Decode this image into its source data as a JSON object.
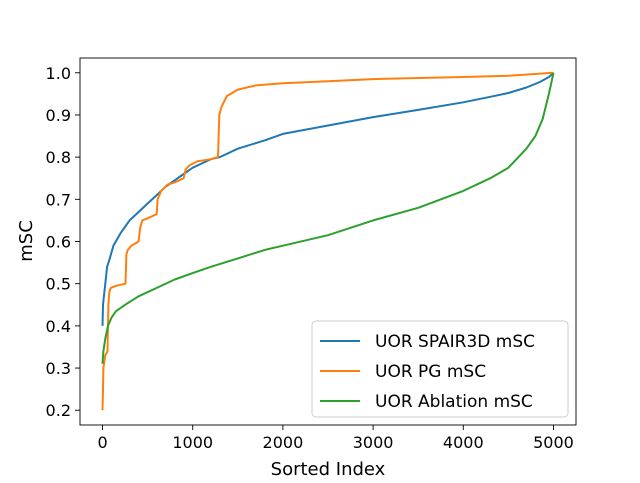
{
  "chart_data": {
    "type": "line",
    "title": "",
    "xlabel": "Sorted Index",
    "ylabel": "mSC",
    "xlim": [
      -250,
      5250
    ],
    "ylim": [
      0.165,
      1.035
    ],
    "xticks": [
      0,
      1000,
      2000,
      3000,
      4000,
      5000
    ],
    "yticks": [
      0.2,
      0.3,
      0.4,
      0.5,
      0.6,
      0.7,
      0.8,
      0.9,
      1.0
    ],
    "xtick_labels": [
      "0",
      "1000",
      "2000",
      "3000",
      "4000",
      "5000"
    ],
    "ytick_labels": [
      "0.2",
      "0.3",
      "0.4",
      "0.5",
      "0.6",
      "0.7",
      "0.8",
      "0.9",
      "1.0"
    ],
    "grid": false,
    "legend": {
      "position": "bottom-right"
    },
    "series": [
      {
        "name": "UOR SPAIR3D mSC",
        "color": "#1f77b4",
        "points": [
          [
            0,
            0.4
          ],
          [
            5,
            0.45
          ],
          [
            15,
            0.47
          ],
          [
            30,
            0.5
          ],
          [
            50,
            0.54
          ],
          [
            80,
            0.56
          ],
          [
            120,
            0.59
          ],
          [
            200,
            0.62
          ],
          [
            300,
            0.65
          ],
          [
            400,
            0.67
          ],
          [
            500,
            0.69
          ],
          [
            600,
            0.71
          ],
          [
            700,
            0.73
          ],
          [
            800,
            0.745
          ],
          [
            900,
            0.76
          ],
          [
            1000,
            0.775
          ],
          [
            1100,
            0.785
          ],
          [
            1200,
            0.795
          ],
          [
            1300,
            0.8
          ],
          [
            1500,
            0.82
          ],
          [
            1800,
            0.84
          ],
          [
            2000,
            0.855
          ],
          [
            2500,
            0.875
          ],
          [
            3000,
            0.895
          ],
          [
            3500,
            0.912
          ],
          [
            4000,
            0.93
          ],
          [
            4300,
            0.943
          ],
          [
            4500,
            0.952
          ],
          [
            4700,
            0.965
          ],
          [
            4850,
            0.978
          ],
          [
            4950,
            0.99
          ],
          [
            5000,
            1.0
          ]
        ]
      },
      {
        "name": "UOR PG mSC",
        "color": "#ff7f0e",
        "points": [
          [
            0,
            0.2
          ],
          [
            5,
            0.25
          ],
          [
            10,
            0.3
          ],
          [
            30,
            0.33
          ],
          [
            55,
            0.34
          ],
          [
            65,
            0.45
          ],
          [
            75,
            0.48
          ],
          [
            90,
            0.49
          ],
          [
            150,
            0.495
          ],
          [
            255,
            0.5
          ],
          [
            265,
            0.57
          ],
          [
            280,
            0.58
          ],
          [
            320,
            0.59
          ],
          [
            400,
            0.6
          ],
          [
            415,
            0.63
          ],
          [
            440,
            0.65
          ],
          [
            500,
            0.655
          ],
          [
            600,
            0.665
          ],
          [
            610,
            0.7
          ],
          [
            650,
            0.72
          ],
          [
            720,
            0.735
          ],
          [
            800,
            0.74
          ],
          [
            900,
            0.75
          ],
          [
            920,
            0.77
          ],
          [
            960,
            0.78
          ],
          [
            1050,
            0.79
          ],
          [
            1200,
            0.795
          ],
          [
            1280,
            0.8
          ],
          [
            1295,
            0.9
          ],
          [
            1320,
            0.92
          ],
          [
            1380,
            0.945
          ],
          [
            1500,
            0.96
          ],
          [
            1700,
            0.97
          ],
          [
            2000,
            0.975
          ],
          [
            2500,
            0.98
          ],
          [
            3000,
            0.985
          ],
          [
            4000,
            0.99
          ],
          [
            4500,
            0.993
          ],
          [
            5000,
            1.0
          ]
        ]
      },
      {
        "name": "UOR Ablation mSC",
        "color": "#2ca02c",
        "points": [
          [
            0,
            0.31
          ],
          [
            10,
            0.34
          ],
          [
            30,
            0.37
          ],
          [
            60,
            0.4
          ],
          [
            100,
            0.42
          ],
          [
            150,
            0.435
          ],
          [
            250,
            0.45
          ],
          [
            400,
            0.47
          ],
          [
            600,
            0.49
          ],
          [
            800,
            0.51
          ],
          [
            1000,
            0.525
          ],
          [
            1200,
            0.54
          ],
          [
            1500,
            0.56
          ],
          [
            1800,
            0.58
          ],
          [
            2000,
            0.59
          ],
          [
            2500,
            0.615
          ],
          [
            3000,
            0.65
          ],
          [
            3500,
            0.68
          ],
          [
            4000,
            0.72
          ],
          [
            4300,
            0.75
          ],
          [
            4500,
            0.775
          ],
          [
            4700,
            0.82
          ],
          [
            4800,
            0.85
          ],
          [
            4880,
            0.89
          ],
          [
            4950,
            0.95
          ],
          [
            5000,
            1.0
          ]
        ]
      }
    ]
  }
}
